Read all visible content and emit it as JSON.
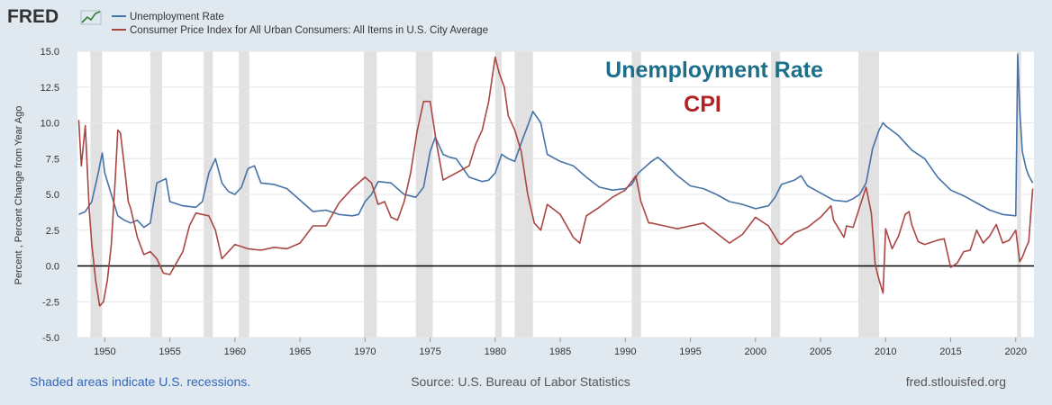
{
  "brand": {
    "logo_text": "FRED"
  },
  "footer": {
    "note": "Shaded areas indicate U.S. recessions.",
    "source": "Source: U.S. Bureau of Labor Statistics",
    "site": "fred.stlouisfed.org"
  },
  "annotations": {
    "unrate": "Unemployment Rate",
    "cpi": "CPI"
  },
  "colors": {
    "unrate": "#4572a7",
    "cpi": "#aa4643",
    "unrate_label": "#1b6f8a",
    "cpi_label": "#b22222",
    "recession": "#e1e1e1"
  },
  "chart_data": {
    "type": "line",
    "title": "",
    "xlabel": "",
    "ylabel": "Percent , Percent Change from Year Ago",
    "xlim": [
      1947.9,
      2021.4
    ],
    "ylim": [
      -5.0,
      15.0
    ],
    "x_ticks": [
      1950,
      1955,
      1960,
      1965,
      1970,
      1975,
      1980,
      1985,
      1990,
      1995,
      2000,
      2005,
      2010,
      2015,
      2020
    ],
    "y_ticks": [
      "-5.0",
      "-2.5",
      "0.0",
      "2.5",
      "5.0",
      "7.5",
      "10.0",
      "12.5",
      "15.0"
    ],
    "legend": [
      "Unemployment Rate",
      "Consumer Price Index for All Urban Consumers: All Items in U.S. City Average"
    ],
    "recessions": [
      [
        1948.9,
        1949.8
      ],
      [
        1953.5,
        1954.4
      ],
      [
        1957.6,
        1958.3
      ],
      [
        1960.3,
        1961.1
      ],
      [
        1969.9,
        1970.9
      ],
      [
        1973.9,
        1975.2
      ],
      [
        1980.0,
        1980.5
      ],
      [
        1981.5,
        1982.9
      ],
      [
        1990.5,
        1991.2
      ],
      [
        2001.2,
        2001.9
      ],
      [
        2007.9,
        2009.5
      ],
      [
        2020.1,
        2020.4
      ]
    ],
    "series": [
      {
        "name": "Unemployment Rate",
        "x": [
          1948.0,
          1948.5,
          1949.0,
          1949.5,
          1949.8,
          1950.0,
          1950.5,
          1951.0,
          1951.5,
          1952.0,
          1952.5,
          1953.0,
          1953.5,
          1954.0,
          1954.7,
          1955.0,
          1956.0,
          1957.0,
          1957.5,
          1958.0,
          1958.5,
          1959.0,
          1959.5,
          1960.0,
          1960.5,
          1961.0,
          1961.5,
          1962.0,
          1963.0,
          1964.0,
          1965.0,
          1966.0,
          1967.0,
          1968.0,
          1969.0,
          1969.5,
          1970.0,
          1970.5,
          1971.0,
          1972.0,
          1973.0,
          1973.9,
          1974.5,
          1975.0,
          1975.4,
          1976.0,
          1976.5,
          1977.0,
          1978.0,
          1979.0,
          1979.5,
          1980.0,
          1980.5,
          1981.0,
          1981.5,
          1982.0,
          1982.5,
          1982.9,
          1983.5,
          1984.0,
          1985.0,
          1986.0,
          1987.0,
          1988.0,
          1989.0,
          1990.0,
          1990.5,
          1991.0,
          1991.5,
          1992.0,
          1992.5,
          1993.0,
          1994.0,
          1995.0,
          1996.0,
          1997.0,
          1998.0,
          1999.0,
          2000.0,
          2001.0,
          2001.5,
          2002.0,
          2003.0,
          2003.5,
          2004.0,
          2005.0,
          2006.0,
          2007.0,
          2007.5,
          2008.0,
          2008.5,
          2009.0,
          2009.5,
          2009.8,
          2010.0,
          2011.0,
          2012.0,
          2013.0,
          2014.0,
          2015.0,
          2016.0,
          2017.0,
          2018.0,
          2019.0,
          2020.0,
          2020.15,
          2020.3,
          2020.5,
          2020.8,
          2021.0,
          2021.3
        ],
        "values": [
          3.6,
          3.8,
          4.5,
          6.5,
          7.9,
          6.5,
          5.0,
          3.5,
          3.2,
          3.0,
          3.2,
          2.7,
          3.0,
          5.8,
          6.1,
          4.5,
          4.2,
          4.1,
          4.5,
          6.5,
          7.5,
          5.8,
          5.2,
          5.0,
          5.5,
          6.8,
          7.0,
          5.8,
          5.7,
          5.4,
          4.6,
          3.8,
          3.9,
          3.6,
          3.5,
          3.6,
          4.5,
          5.0,
          5.9,
          5.8,
          5.0,
          4.8,
          5.5,
          8.0,
          9.0,
          7.8,
          7.6,
          7.5,
          6.2,
          5.9,
          6.0,
          6.5,
          7.8,
          7.5,
          7.3,
          8.6,
          9.8,
          10.8,
          10.0,
          7.8,
          7.3,
          7.0,
          6.2,
          5.5,
          5.3,
          5.4,
          5.7,
          6.5,
          6.9,
          7.3,
          7.6,
          7.2,
          6.3,
          5.6,
          5.4,
          5.0,
          4.5,
          4.3,
          4.0,
          4.2,
          4.8,
          5.7,
          6.0,
          6.3,
          5.6,
          5.1,
          4.6,
          4.5,
          4.7,
          5.0,
          5.8,
          8.2,
          9.5,
          10.0,
          9.8,
          9.1,
          8.1,
          7.5,
          6.2,
          5.3,
          4.9,
          4.4,
          3.9,
          3.6,
          3.5,
          14.8,
          11.0,
          8.0,
          6.8,
          6.3,
          5.8
        ]
      },
      {
        "name": "Consumer Price Index for All Urban Consumers: All Items in U.S. City Average",
        "x": [
          1948.0,
          1948.2,
          1948.5,
          1948.8,
          1949.0,
          1949.3,
          1949.6,
          1949.9,
          1950.2,
          1950.5,
          1950.8,
          1951.0,
          1951.2,
          1951.5,
          1951.8,
          1952.0,
          1952.5,
          1953.0,
          1953.5,
          1954.0,
          1954.5,
          1955.0,
          1955.5,
          1956.0,
          1956.5,
          1957.0,
          1957.5,
          1958.0,
          1958.5,
          1959.0,
          1959.5,
          1960.0,
          1961.0,
          1962.0,
          1963.0,
          1964.0,
          1965.0,
          1966.0,
          1967.0,
          1968.0,
          1969.0,
          1970.0,
          1970.5,
          1971.0,
          1971.5,
          1972.0,
          1972.5,
          1973.0,
          1973.5,
          1974.0,
          1974.5,
          1975.0,
          1975.5,
          1976.0,
          1977.0,
          1978.0,
          1978.5,
          1979.0,
          1979.5,
          1980.0,
          1980.3,
          1980.7,
          1981.0,
          1981.5,
          1982.0,
          1982.5,
          1983.0,
          1983.5,
          1984.0,
          1985.0,
          1986.0,
          1986.5,
          1987.0,
          1988.0,
          1989.0,
          1990.0,
          1990.8,
          1991.2,
          1991.8,
          1992.0,
          1993.0,
          1994.0,
          1995.0,
          1996.0,
          1997.0,
          1998.0,
          1999.0,
          2000.0,
          2001.0,
          2001.8,
          2002.0,
          2003.0,
          2004.0,
          2005.0,
          2005.8,
          2006.0,
          2006.8,
          2007.0,
          2007.5,
          2008.0,
          2008.5,
          2008.9,
          2009.2,
          2009.5,
          2009.8,
          2010.0,
          2010.5,
          2011.0,
          2011.5,
          2011.8,
          2012.0,
          2012.5,
          2013.0,
          2014.0,
          2014.5,
          2015.0,
          2015.5,
          2016.0,
          2016.5,
          2017.0,
          2017.5,
          2018.0,
          2018.5,
          2019.0,
          2019.5,
          2020.0,
          2020.3,
          2020.5,
          2020.8,
          2021.0,
          2021.2,
          2021.3
        ],
        "values": [
          10.2,
          7.0,
          9.8,
          4.0,
          1.5,
          -1.0,
          -2.8,
          -2.5,
          -1.0,
          1.5,
          6.0,
          9.5,
          9.3,
          7.0,
          4.5,
          4.0,
          2.0,
          0.8,
          1.0,
          0.5,
          -0.5,
          -0.6,
          0.2,
          1.0,
          2.8,
          3.7,
          3.6,
          3.5,
          2.5,
          0.5,
          1.0,
          1.5,
          1.2,
          1.1,
          1.3,
          1.2,
          1.6,
          2.8,
          2.8,
          4.4,
          5.4,
          6.2,
          5.8,
          4.3,
          4.5,
          3.4,
          3.2,
          4.5,
          6.5,
          9.4,
          11.5,
          11.5,
          8.5,
          6.0,
          6.5,
          7.0,
          8.5,
          9.5,
          11.5,
          14.6,
          13.5,
          12.5,
          10.5,
          9.5,
          8.0,
          5.0,
          3.0,
          2.5,
          4.3,
          3.6,
          2.0,
          1.6,
          3.5,
          4.1,
          4.8,
          5.3,
          6.3,
          4.5,
          3.0,
          3.0,
          2.8,
          2.6,
          2.8,
          3.0,
          2.3,
          1.6,
          2.2,
          3.4,
          2.8,
          1.6,
          1.5,
          2.3,
          2.7,
          3.4,
          4.2,
          3.2,
          2.0,
          2.8,
          2.7,
          4.1,
          5.5,
          3.7,
          0.1,
          -1.0,
          -1.9,
          2.6,
          1.2,
          2.1,
          3.6,
          3.8,
          2.9,
          1.7,
          1.5,
          1.8,
          1.9,
          -0.1,
          0.2,
          1.0,
          1.1,
          2.5,
          1.6,
          2.1,
          2.9,
          1.6,
          1.8,
          2.5,
          0.3,
          0.6,
          1.3,
          1.7,
          4.2,
          5.4
        ]
      }
    ]
  }
}
